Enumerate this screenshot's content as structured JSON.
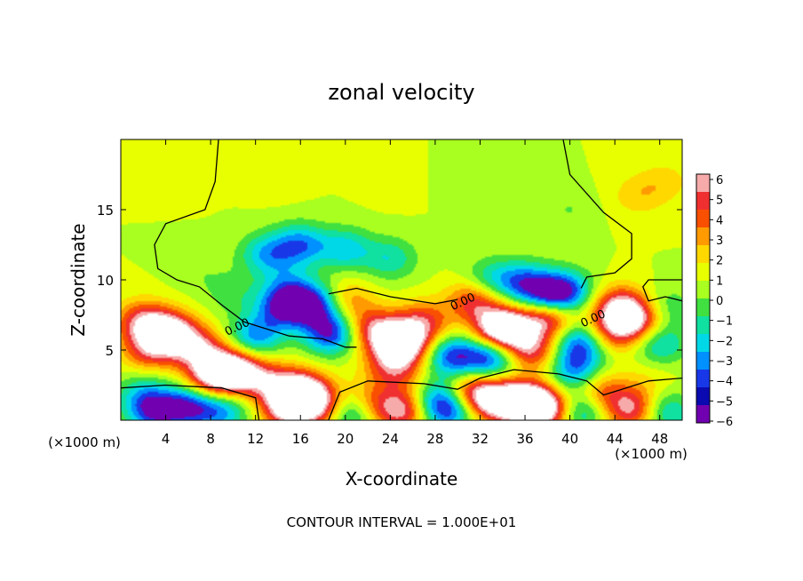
{
  "chart_data": {
    "type": "heatmap",
    "title": "zonal velocity",
    "xlabel": "X-coordinate",
    "ylabel": "Z-coordinate",
    "x_unit": "(×1000 m)",
    "x_unit_right": "(×1000 m)",
    "footer": "CONTOUR INTERVAL = 1.000E+01",
    "contour_label": "0.00",
    "xlim": [
      0,
      50
    ],
    "ylim": [
      0,
      20
    ],
    "x_ticks": [
      4,
      8,
      12,
      16,
      20,
      24,
      28,
      32,
      36,
      40,
      44,
      48
    ],
    "y_ticks": [
      5,
      10,
      15
    ],
    "colorbar": {
      "ticks": [
        6,
        5,
        4,
        3,
        2,
        1,
        0,
        -1,
        -2,
        -3,
        -4,
        -5,
        -6
      ],
      "colors": [
        "#f7aaaa",
        "#f03030",
        "#f85000",
        "#ff9a00",
        "#ffd800",
        "#e8ff00",
        "#a8ff20",
        "#40e040",
        "#10e0a0",
        "#00d8e8",
        "#0090ff",
        "#1838e8",
        "#0a0ab0",
        "#7000b0"
      ]
    },
    "features": [
      {
        "x": 6,
        "z": 18,
        "value": 0.6
      },
      {
        "x": 14,
        "z": 17,
        "value": 0.4
      },
      {
        "x": 24,
        "z": 17,
        "value": 0.5
      },
      {
        "x": 31,
        "z": 17,
        "value": -0.6
      },
      {
        "x": 36,
        "z": 16,
        "value": -0.4
      },
      {
        "x": 46,
        "z": 16,
        "value": 1.6
      },
      {
        "x": 48.5,
        "z": 17,
        "value": 1.4
      },
      {
        "x": 40,
        "z": 15,
        "value": -1.0
      },
      {
        "x": 16,
        "z": 12.5,
        "value": -4.5
      },
      {
        "x": 13,
        "z": 11.8,
        "value": -3.8
      },
      {
        "x": 20,
        "z": 12.2,
        "value": -3.5
      },
      {
        "x": 24,
        "z": 11.5,
        "value": -2.8
      },
      {
        "x": 15,
        "z": 9.5,
        "value": -3.0
      },
      {
        "x": 17.3,
        "z": 8.2,
        "value": -6
      },
      {
        "x": 14.5,
        "z": 8.0,
        "value": -5.5
      },
      {
        "x": 18.7,
        "z": 6.2,
        "value": -6
      },
      {
        "x": 12,
        "z": 6,
        "value": -4.5
      },
      {
        "x": 33,
        "z": 10,
        "value": -3.0
      },
      {
        "x": 36,
        "z": 9.8,
        "value": -4.5
      },
      {
        "x": 39.5,
        "z": 9.2,
        "value": -5.5
      },
      {
        "x": 38,
        "z": 8.4,
        "value": -6
      },
      {
        "x": 41,
        "z": 5.5,
        "value": -5.5
      },
      {
        "x": 29.5,
        "z": 4.5,
        "value": -5.5
      },
      {
        "x": 33,
        "z": 4.5,
        "value": -5.8
      },
      {
        "x": 40.5,
        "z": 3.5,
        "value": -4.5
      },
      {
        "x": 48,
        "z": 5.5,
        "value": -3.5
      },
      {
        "x": 48.5,
        "z": 8.0,
        "value": -2.0
      },
      {
        "x": 2,
        "z": 7.0,
        "value": 5.0
      },
      {
        "x": 4.5,
        "z": 6.2,
        "value": 7
      },
      {
        "x": 2.5,
        "z": 5.0,
        "value": 4.0
      },
      {
        "x": 7,
        "z": 5,
        "value": 5.0
      },
      {
        "x": 10,
        "z": 3.5,
        "value": 8
      },
      {
        "x": 8,
        "z": 3.0,
        "value": 5.0
      },
      {
        "x": 13,
        "z": 2.8,
        "value": 4.0
      },
      {
        "x": 16,
        "z": 2.0,
        "value": 8
      },
      {
        "x": 15,
        "z": 0.8,
        "value": 6
      },
      {
        "x": 18,
        "z": 1.0,
        "value": 4.5
      },
      {
        "x": 25,
        "z": 5.5,
        "value": 9
      },
      {
        "x": 22.5,
        "z": 6.5,
        "value": 4.5
      },
      {
        "x": 27,
        "z": 7,
        "value": 4.0
      },
      {
        "x": 24,
        "z": 3.8,
        "value": 3.5
      },
      {
        "x": 20,
        "z": 8.5,
        "value": 3.0
      },
      {
        "x": 34,
        "z": 6.5,
        "value": 10
      },
      {
        "x": 38,
        "z": 7.5,
        "value": 8
      },
      {
        "x": 36.5,
        "z": 5.0,
        "value": 5.0
      },
      {
        "x": 31.5,
        "z": 8.5,
        "value": 4.5
      },
      {
        "x": 44.5,
        "z": 8.0,
        "value": 6
      },
      {
        "x": 43.5,
        "z": 6.2,
        "value": 4.0
      },
      {
        "x": 46,
        "z": 7,
        "value": 5.0
      },
      {
        "x": 33,
        "z": 1.5,
        "value": 7
      },
      {
        "x": 36,
        "z": 1.2,
        "value": 9
      },
      {
        "x": 38,
        "z": 0.8,
        "value": 6
      },
      {
        "x": 30.5,
        "z": 2.0,
        "value": 4.0
      },
      {
        "x": 25,
        "z": 0.7,
        "value": 5.5
      },
      {
        "x": 22,
        "z": 1.2,
        "value": 3.5
      },
      {
        "x": 45.5,
        "z": 0.8,
        "value": 5.5
      },
      {
        "x": 42.5,
        "z": 2.0,
        "value": 4.0
      },
      {
        "x": 26,
        "z": 2.8,
        "value": 1.5
      },
      {
        "x": 47,
        "z": 2.8,
        "value": 1.0
      },
      {
        "x": 6,
        "z": 1.0,
        "value": -5.5
      },
      {
        "x": 3,
        "z": 0.5,
        "value": -5.0
      },
      {
        "x": 9,
        "z": 0.6,
        "value": -4.0
      },
      {
        "x": 2,
        "z": 1.8,
        "value": -3.0
      },
      {
        "x": 20.5,
        "z": 0.6,
        "value": -5.0
      },
      {
        "x": 29.3,
        "z": 0.8,
        "value": -6
      },
      {
        "x": 28,
        "z": 1.8,
        "value": -3.5
      },
      {
        "x": 41,
        "z": 0.8,
        "value": -4.5
      },
      {
        "x": 48.5,
        "z": 0.6,
        "value": -3.5
      },
      {
        "x": 10,
        "z": 9.0,
        "value": -1.5
      },
      {
        "x": 7,
        "z": 10.5,
        "value": -0.8
      }
    ],
    "zero_contours": [
      [
        [
          8.7,
          20
        ],
        [
          8.4,
          17
        ],
        [
          7.5,
          15.0
        ],
        [
          4,
          14.0
        ],
        [
          3,
          12.5
        ],
        [
          3.3,
          10.8
        ],
        [
          5,
          10.0
        ],
        [
          7,
          9.5
        ],
        [
          9,
          8.2
        ],
        [
          11,
          7.0
        ],
        [
          15,
          6.0
        ],
        [
          18,
          5.8
        ],
        [
          20,
          5.2
        ],
        [
          21,
          5.2
        ]
      ],
      [
        [
          0,
          2.3
        ],
        [
          4,
          2.5
        ],
        [
          9,
          2.3
        ],
        [
          12,
          1.6
        ],
        [
          12.3,
          0.0
        ]
      ],
      [
        [
          18.5,
          0.0
        ],
        [
          19.5,
          2.0
        ],
        [
          22,
          2.8
        ],
        [
          27,
          2.6
        ],
        [
          30,
          2.2
        ],
        [
          32,
          3.0
        ],
        [
          35,
          3.6
        ],
        [
          39,
          3.3
        ],
        [
          41.5,
          2.8
        ],
        [
          43,
          1.8
        ],
        [
          45,
          2.3
        ],
        [
          47,
          2.8
        ],
        [
          50,
          3.0
        ]
      ],
      [
        [
          18.5,
          9.0
        ],
        [
          21,
          9.4
        ],
        [
          24,
          8.8
        ],
        [
          28,
          8.3
        ],
        [
          30,
          8.6
        ]
      ],
      [
        [
          39.4,
          20
        ],
        [
          40,
          17.5
        ],
        [
          43,
          14.8
        ],
        [
          45.5,
          13.3
        ],
        [
          45.5,
          11.5
        ],
        [
          44,
          10.5
        ],
        [
          41.5,
          10.2
        ],
        [
          41,
          9.4
        ]
      ],
      [
        [
          50,
          8.5
        ],
        [
          48.5,
          8.8
        ],
        [
          47,
          8.5
        ],
        [
          46.5,
          9.5
        ],
        [
          47,
          10.0
        ],
        [
          50,
          10.0
        ]
      ]
    ]
  }
}
